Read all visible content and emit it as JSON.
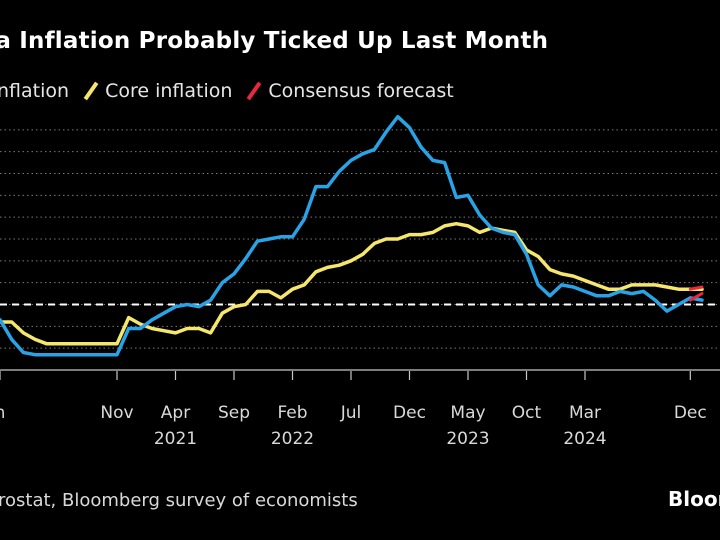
{
  "chart_data": {
    "type": "line",
    "title": "rea Inflation Probably Ticked Up Last Month",
    "source": "rostat, Bloomberg survey of economists",
    "brand": "Bloor",
    "xlabel": "",
    "ylabel": "",
    "ylim": [
      -1,
      11
    ],
    "grid": true,
    "gridlines": [
      -1,
      0,
      1,
      2,
      3,
      4,
      5,
      6,
      7,
      8,
      9,
      10
    ],
    "reference_line": 2,
    "x_ticks": [
      {
        "label": "n",
        "year": "",
        "index": 0
      },
      {
        "label": "Nov",
        "year": "",
        "index": 10
      },
      {
        "label": "Apr",
        "year": "2021",
        "index": 15
      },
      {
        "label": "Sep",
        "year": "",
        "index": 20
      },
      {
        "label": "Feb",
        "year": "2022",
        "index": 25
      },
      {
        "label": "Jul",
        "year": "",
        "index": 30
      },
      {
        "label": "Dec",
        "year": "",
        "index": 35
      },
      {
        "label": "May",
        "year": "2023",
        "index": 40
      },
      {
        "label": "Oct",
        "year": "",
        "index": 45
      },
      {
        "label": "Mar",
        "year": "2024",
        "index": 50
      },
      {
        "label": "Dec",
        "year": "",
        "index": 59
      }
    ],
    "legend": [
      {
        "name": "e inflation",
        "color": "#29a3e6"
      },
      {
        "name": "Core inflation",
        "color": "#f5e66c"
      },
      {
        "name": "Consensus forecast",
        "color": "#e8283c"
      }
    ],
    "series": [
      {
        "name": "Headline inflation",
        "color": "#29a3e6",
        "values": [
          1.3,
          0.4,
          -0.2,
          -0.3,
          -0.3,
          -0.3,
          -0.3,
          -0.3,
          -0.3,
          -0.3,
          -0.3,
          0.9,
          0.9,
          1.3,
          1.6,
          1.9,
          2.0,
          1.9,
          2.2,
          3.0,
          3.4,
          4.1,
          4.9,
          5.0,
          5.1,
          5.1,
          5.9,
          7.4,
          7.4,
          8.1,
          8.6,
          8.9,
          9.1,
          9.9,
          10.6,
          10.1,
          9.2,
          8.6,
          8.5,
          6.9,
          7.0,
          6.1,
          5.5,
          5.3,
          5.2,
          4.3,
          2.9,
          2.4,
          2.9,
          2.8,
          2.6,
          2.4,
          2.4,
          2.6,
          2.5,
          2.6,
          2.2,
          1.7,
          2.0,
          2.3,
          2.2
        ]
      },
      {
        "name": "Core inflation",
        "color": "#f5e66c",
        "values": [
          1.2,
          1.2,
          0.7,
          0.4,
          0.2,
          0.2,
          0.2,
          0.2,
          0.2,
          0.2,
          0.2,
          1.4,
          1.1,
          0.9,
          0.8,
          0.7,
          0.9,
          0.9,
          0.7,
          1.6,
          1.9,
          2.0,
          2.6,
          2.6,
          2.3,
          2.7,
          2.9,
          3.5,
          3.7,
          3.8,
          4.0,
          4.3,
          4.8,
          5.0,
          5.0,
          5.2,
          5.2,
          5.3,
          5.6,
          5.7,
          5.6,
          5.3,
          5.5,
          5.4,
          5.3,
          4.5,
          4.2,
          3.6,
          3.4,
          3.3,
          3.1,
          2.9,
          2.7,
          2.7,
          2.9,
          2.9,
          2.9,
          2.8,
          2.7,
          2.7,
          2.7
        ]
      },
      {
        "name": "Consensus forecast",
        "color": "#e8283c",
        "x_start": 59,
        "values": [
          2.2,
          2.5
        ]
      },
      {
        "name": "Consensus forecast (core)",
        "color": "#e8283c",
        "x_start": 59,
        "values": [
          2.7,
          2.8
        ]
      }
    ]
  }
}
